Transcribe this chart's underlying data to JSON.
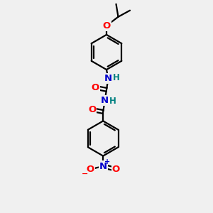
{
  "background_color": "#f0f0f0",
  "bond_color": "#000000",
  "bond_width": 1.6,
  "atom_colors": {
    "O": "#ff0000",
    "N": "#0000cc",
    "H": "#008080",
    "C": "#000000"
  },
  "font_size_atoms": 9.5,
  "font_size_H": 8.5,
  "font_size_charge": 7
}
